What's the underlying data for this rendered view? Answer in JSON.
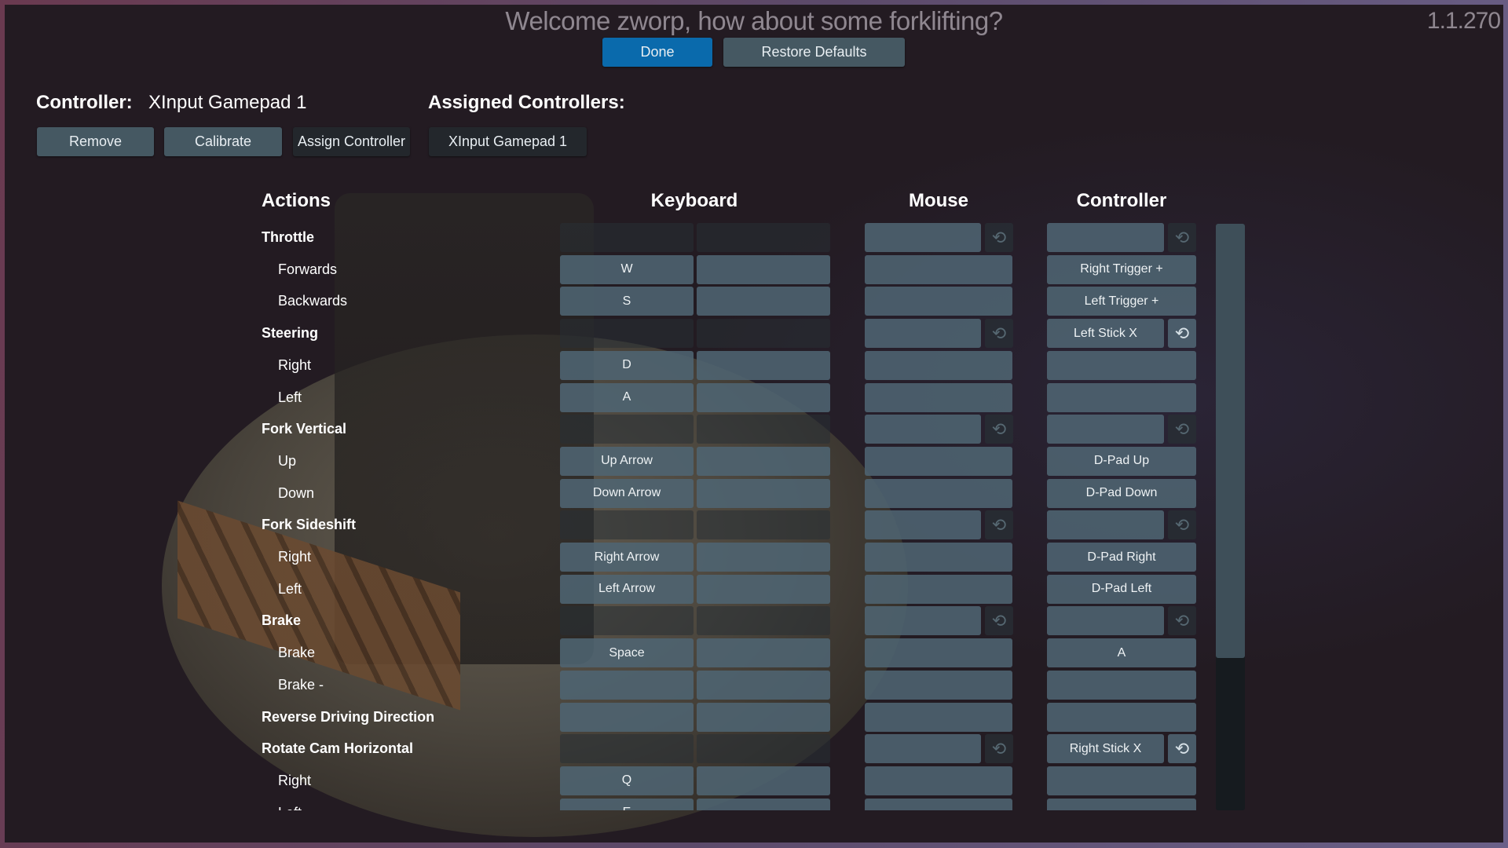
{
  "header": {
    "title": "Welcome zworp, how about some forklifting?",
    "version": "1.1.270",
    "done_label": "Done",
    "restore_label": "Restore Defaults"
  },
  "controller": {
    "label": "Controller:",
    "name": "XInput Gamepad 1",
    "remove_label": "Remove",
    "calibrate_label": "Calibrate",
    "assign_label": "Assign Controller",
    "assigned_label": "Assigned Controllers:",
    "assigned": [
      "XInput Gamepad 1"
    ]
  },
  "columns": {
    "actions": "Actions",
    "keyboard": "Keyboard",
    "mouse": "Mouse",
    "controller": "Controller"
  },
  "icons": {
    "reset": "rotate-arrows-icon"
  },
  "colors": {
    "accent": "#0a6aac",
    "cell": "#4e6472",
    "panel": "#221a20"
  },
  "scroll": {
    "position_fraction": 0.0,
    "visible_fraction": 0.74
  },
  "rows": [
    {
      "kind": "group",
      "label": "Throttle",
      "kb": [
        "",
        ""
      ],
      "mouse": "",
      "ctrl": ""
    },
    {
      "kind": "sub",
      "label": "Forwards",
      "kb": [
        "W",
        ""
      ],
      "mouse": "",
      "ctrl": "Right Trigger +"
    },
    {
      "kind": "sub",
      "label": "Backwards",
      "kb": [
        "S",
        ""
      ],
      "mouse": "",
      "ctrl": "Left Trigger +"
    },
    {
      "kind": "group",
      "label": "Steering",
      "kb": [
        "",
        ""
      ],
      "mouse": "",
      "ctrl": "Left Stick X",
      "ctrl_reset_active": true
    },
    {
      "kind": "sub",
      "label": "Right",
      "kb": [
        "D",
        ""
      ],
      "mouse": "",
      "ctrl": ""
    },
    {
      "kind": "sub",
      "label": "Left",
      "kb": [
        "A",
        ""
      ],
      "mouse": "",
      "ctrl": ""
    },
    {
      "kind": "group",
      "label": "Fork Vertical",
      "kb": [
        "",
        ""
      ],
      "mouse": "",
      "ctrl": ""
    },
    {
      "kind": "sub",
      "label": "Up",
      "kb": [
        "Up Arrow",
        ""
      ],
      "mouse": "",
      "ctrl": "D-Pad Up"
    },
    {
      "kind": "sub",
      "label": "Down",
      "kb": [
        "Down Arrow",
        ""
      ],
      "mouse": "",
      "ctrl": "D-Pad Down"
    },
    {
      "kind": "group",
      "label": "Fork Sideshift",
      "kb": [
        "",
        ""
      ],
      "mouse": "",
      "ctrl": ""
    },
    {
      "kind": "sub",
      "label": "Right",
      "kb": [
        "Right Arrow",
        ""
      ],
      "mouse": "",
      "ctrl": "D-Pad Right"
    },
    {
      "kind": "sub",
      "label": "Left",
      "kb": [
        "Left Arrow",
        ""
      ],
      "mouse": "",
      "ctrl": "D-Pad Left"
    },
    {
      "kind": "group",
      "label": "Brake",
      "kb": [
        "",
        ""
      ],
      "mouse": "",
      "ctrl": ""
    },
    {
      "kind": "sub",
      "label": "Brake",
      "kb": [
        "Space",
        ""
      ],
      "mouse": "",
      "ctrl": "A"
    },
    {
      "kind": "sub",
      "label": "Brake -",
      "kb": [
        "",
        ""
      ],
      "mouse": "",
      "ctrl": ""
    },
    {
      "kind": "action",
      "label": "Reverse Driving Direction",
      "kb": [
        "",
        ""
      ],
      "mouse": "",
      "ctrl": ""
    },
    {
      "kind": "group",
      "label": "Rotate Cam Horizontal",
      "kb": [
        "",
        ""
      ],
      "mouse": "",
      "ctrl": "Right Stick X",
      "ctrl_reset_active": true
    },
    {
      "kind": "sub",
      "label": "Right",
      "kb": [
        "Q",
        ""
      ],
      "mouse": "",
      "ctrl": ""
    },
    {
      "kind": "sub",
      "label": "Left",
      "kb": [
        "E",
        ""
      ],
      "mouse": "",
      "ctrl": ""
    }
  ]
}
